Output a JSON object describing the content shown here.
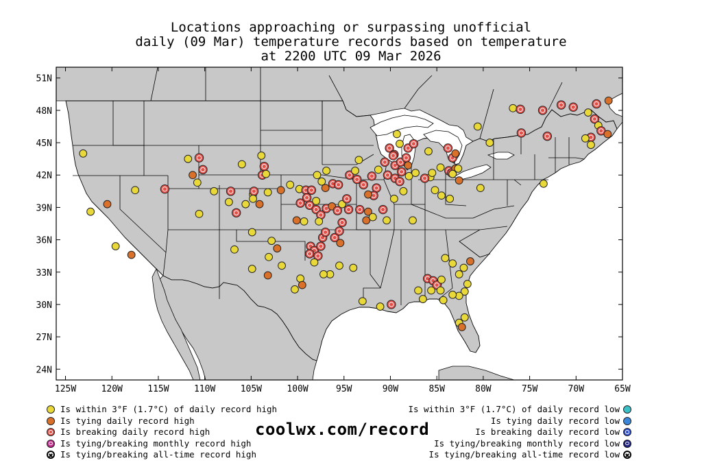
{
  "title_lines": [
    "Locations approaching or surpassing unofficial",
    "daily (09 Mar) temperature records based on temperature",
    "at 2200 UTC 09 Mar 2026"
  ],
  "map": {
    "lon_range": [
      -126,
      -65
    ],
    "lat_range": [
      23,
      52
    ],
    "lon_ticks": [
      {
        "lon": -125,
        "label": "125W"
      },
      {
        "lon": -120,
        "label": "120W"
      },
      {
        "lon": -115,
        "label": "115W"
      },
      {
        "lon": -110,
        "label": "110W"
      },
      {
        "lon": -105,
        "label": "105W"
      },
      {
        "lon": -100,
        "label": "100W"
      },
      {
        "lon": -95,
        "label": "95W"
      },
      {
        "lon": -90,
        "label": "90W"
      },
      {
        "lon": -85,
        "label": "85W"
      },
      {
        "lon": -80,
        "label": "80W"
      },
      {
        "lon": -75,
        "label": "75W"
      },
      {
        "lon": -70,
        "label": "70W"
      },
      {
        "lon": -65,
        "label": "65W"
      }
    ],
    "lat_ticks": [
      {
        "lat": 51,
        "label": "51N"
      },
      {
        "lat": 48,
        "label": "48N"
      },
      {
        "lat": 45,
        "label": "45N"
      },
      {
        "lat": 42,
        "label": "42N"
      },
      {
        "lat": 39,
        "label": "39N"
      },
      {
        "lat": 36,
        "label": "36N"
      },
      {
        "lat": 33,
        "label": "33N"
      },
      {
        "lat": 30,
        "label": "30N"
      },
      {
        "lat": 27,
        "label": "27N"
      },
      {
        "lat": 24,
        "label": "24N"
      }
    ],
    "land_color": "#c8c8c8",
    "water_color": "#ffffff",
    "colors": {
      "within": "#e8d83a",
      "tying": "#d9712a",
      "breaking": "#e2504a"
    },
    "stations": [
      {
        "lon": -123.1,
        "lat": 44.0,
        "cat": "within"
      },
      {
        "lon": -122.3,
        "lat": 38.6,
        "cat": "within"
      },
      {
        "lon": -120.5,
        "lat": 39.3,
        "cat": "tying"
      },
      {
        "lon": -119.6,
        "lat": 35.4,
        "cat": "within"
      },
      {
        "lon": -117.9,
        "lat": 34.6,
        "cat": "tying"
      },
      {
        "lon": -117.5,
        "lat": 40.6,
        "cat": "within"
      },
      {
        "lon": -114.3,
        "lat": 40.7,
        "cat": "breaking"
      },
      {
        "lon": -111.8,
        "lat": 43.5,
        "cat": "within"
      },
      {
        "lon": -110.6,
        "lat": 43.6,
        "cat": "breaking"
      },
      {
        "lon": -110.2,
        "lat": 42.5,
        "cat": "breaking"
      },
      {
        "lon": -111.3,
        "lat": 42.0,
        "cat": "tying"
      },
      {
        "lon": -110.8,
        "lat": 41.3,
        "cat": "within"
      },
      {
        "lon": -109.0,
        "lat": 40.5,
        "cat": "within"
      },
      {
        "lon": -110.6,
        "lat": 38.4,
        "cat": "within"
      },
      {
        "lon": -106.0,
        "lat": 43.0,
        "cat": "within"
      },
      {
        "lon": -107.2,
        "lat": 40.5,
        "cat": "breaking"
      },
      {
        "lon": -107.4,
        "lat": 39.5,
        "cat": "within"
      },
      {
        "lon": -106.6,
        "lat": 38.5,
        "cat": "breaking"
      },
      {
        "lon": -105.6,
        "lat": 39.3,
        "cat": "within"
      },
      {
        "lon": -104.8,
        "lat": 40.2,
        "cat": "within"
      },
      {
        "lon": -104.7,
        "lat": 40.5,
        "cat": "breaking"
      },
      {
        "lon": -104.8,
        "lat": 39.8,
        "cat": "within"
      },
      {
        "lon": -104.1,
        "lat": 39.3,
        "cat": "tying"
      },
      {
        "lon": -103.9,
        "lat": 43.8,
        "cat": "within"
      },
      {
        "lon": -103.6,
        "lat": 42.8,
        "cat": "breaking"
      },
      {
        "lon": -103.8,
        "lat": 42.0,
        "cat": "breaking"
      },
      {
        "lon": -103.4,
        "lat": 42.1,
        "cat": "within"
      },
      {
        "lon": -103.2,
        "lat": 40.4,
        "cat": "within"
      },
      {
        "lon": -104.9,
        "lat": 36.7,
        "cat": "within"
      },
      {
        "lon": -106.8,
        "lat": 35.1,
        "cat": "within"
      },
      {
        "lon": -103.1,
        "lat": 34.4,
        "cat": "within"
      },
      {
        "lon": -103.2,
        "lat": 32.7,
        "cat": "tying"
      },
      {
        "lon": -104.9,
        "lat": 33.3,
        "cat": "within"
      },
      {
        "lon": -102.8,
        "lat": 35.9,
        "cat": "within"
      },
      {
        "lon": -102.2,
        "lat": 35.2,
        "cat": "tying"
      },
      {
        "lon": -101.8,
        "lat": 40.6,
        "cat": "tying"
      },
      {
        "lon": -100.8,
        "lat": 41.1,
        "cat": "within"
      },
      {
        "lon": -99.8,
        "lat": 40.7,
        "cat": "within"
      },
      {
        "lon": -99.1,
        "lat": 40.6,
        "cat": "breaking"
      },
      {
        "lon": -98.5,
        "lat": 40.6,
        "cat": "breaking"
      },
      {
        "lon": -97.9,
        "lat": 42.0,
        "cat": "within"
      },
      {
        "lon": -97.4,
        "lat": 41.4,
        "cat": "within"
      },
      {
        "lon": -97.0,
        "lat": 40.8,
        "cat": "tying"
      },
      {
        "lon": -96.2,
        "lat": 41.2,
        "cat": "breaking"
      },
      {
        "lon": -95.6,
        "lat": 41.1,
        "cat": "breaking"
      },
      {
        "lon": -96.9,
        "lat": 42.4,
        "cat": "within"
      },
      {
        "lon": -99.0,
        "lat": 39.9,
        "cat": "breaking"
      },
      {
        "lon": -98.0,
        "lat": 39.6,
        "cat": "within"
      },
      {
        "lon": -98.7,
        "lat": 39.2,
        "cat": "breaking"
      },
      {
        "lon": -98.0,
        "lat": 38.8,
        "cat": "breaking"
      },
      {
        "lon": -97.5,
        "lat": 38.3,
        "cat": "breaking"
      },
      {
        "lon": -96.9,
        "lat": 38.9,
        "cat": "breaking"
      },
      {
        "lon": -96.3,
        "lat": 39.1,
        "cat": "tying"
      },
      {
        "lon": -95.7,
        "lat": 38.7,
        "cat": "breaking"
      },
      {
        "lon": -95.2,
        "lat": 39.3,
        "cat": "within"
      },
      {
        "lon": -95.2,
        "lat": 37.6,
        "cat": "breaking"
      },
      {
        "lon": -99.7,
        "lat": 39.4,
        "cat": "breaking"
      },
      {
        "lon": -100.1,
        "lat": 37.8,
        "cat": "tying"
      },
      {
        "lon": -99.3,
        "lat": 37.7,
        "cat": "within"
      },
      {
        "lon": -97.7,
        "lat": 37.7,
        "cat": "within"
      },
      {
        "lon": -97.3,
        "lat": 36.2,
        "cat": "breaking"
      },
      {
        "lon": -97.0,
        "lat": 36.7,
        "cat": "breaking"
      },
      {
        "lon": -96.0,
        "lat": 36.2,
        "cat": "breaking"
      },
      {
        "lon": -95.5,
        "lat": 36.8,
        "cat": "breaking"
      },
      {
        "lon": -95.4,
        "lat": 35.7,
        "cat": "tying"
      },
      {
        "lon": -98.6,
        "lat": 35.4,
        "cat": "breaking"
      },
      {
        "lon": -98.2,
        "lat": 35.0,
        "cat": "breaking"
      },
      {
        "lon": -97.5,
        "lat": 35.4,
        "cat": "breaking"
      },
      {
        "lon": -98.7,
        "lat": 34.7,
        "cat": "breaking"
      },
      {
        "lon": -97.8,
        "lat": 34.5,
        "cat": "breaking"
      },
      {
        "lon": -98.2,
        "lat": 33.9,
        "cat": "within"
      },
      {
        "lon": -96.5,
        "lat": 32.8,
        "cat": "within"
      },
      {
        "lon": -97.2,
        "lat": 32.8,
        "cat": "within"
      },
      {
        "lon": -95.5,
        "lat": 33.6,
        "cat": "within"
      },
      {
        "lon": -94.0,
        "lat": 33.4,
        "cat": "within"
      },
      {
        "lon": -99.7,
        "lat": 32.4,
        "cat": "within"
      },
      {
        "lon": -101.7,
        "lat": 33.6,
        "cat": "within"
      },
      {
        "lon": -100.3,
        "lat": 31.4,
        "cat": "within"
      },
      {
        "lon": -99.5,
        "lat": 31.8,
        "cat": "tying"
      },
      {
        "lon": -94.7,
        "lat": 39.8,
        "cat": "breaking"
      },
      {
        "lon": -94.5,
        "lat": 38.8,
        "cat": "breaking"
      },
      {
        "lon": -93.3,
        "lat": 38.8,
        "cat": "breaking"
      },
      {
        "lon": -92.4,
        "lat": 38.6,
        "cat": "tying"
      },
      {
        "lon": -92.6,
        "lat": 37.8,
        "cat": "tying"
      },
      {
        "lon": -91.5,
        "lat": 40.8,
        "cat": "breaking"
      },
      {
        "lon": -91.8,
        "lat": 40.1,
        "cat": "breaking"
      },
      {
        "lon": -92.4,
        "lat": 40.2,
        "cat": "tying"
      },
      {
        "lon": -93.6,
        "lat": 41.6,
        "cat": "breaking"
      },
      {
        "lon": -92.9,
        "lat": 41.1,
        "cat": "breaking"
      },
      {
        "lon": -92.0,
        "lat": 41.9,
        "cat": "breaking"
      },
      {
        "lon": -94.4,
        "lat": 42.0,
        "cat": "breaking"
      },
      {
        "lon": -93.8,
        "lat": 42.4,
        "cat": "within"
      },
      {
        "lon": -93.4,
        "lat": 43.4,
        "cat": "within"
      },
      {
        "lon": -91.3,
        "lat": 42.5,
        "cat": "within"
      },
      {
        "lon": -90.6,
        "lat": 43.2,
        "cat": "breaking"
      },
      {
        "lon": -90.1,
        "lat": 44.5,
        "cat": "breaking"
      },
      {
        "lon": -89.6,
        "lat": 43.9,
        "cat": "breaking"
      },
      {
        "lon": -89.5,
        "lat": 42.9,
        "cat": "breaking"
      },
      {
        "lon": -88.9,
        "lat": 43.2,
        "cat": "breaking"
      },
      {
        "lon": -88.3,
        "lat": 43.6,
        "cat": "breaking"
      },
      {
        "lon": -88.1,
        "lat": 44.5,
        "cat": "breaking"
      },
      {
        "lon": -87.5,
        "lat": 44.9,
        "cat": "breaking"
      },
      {
        "lon": -89.3,
        "lat": 45.8,
        "cat": "within"
      },
      {
        "lon": -89.0,
        "lat": 44.9,
        "cat": "within"
      },
      {
        "lon": -90.3,
        "lat": 42.0,
        "cat": "breaking"
      },
      {
        "lon": -89.5,
        "lat": 41.7,
        "cat": "breaking"
      },
      {
        "lon": -88.8,
        "lat": 42.3,
        "cat": "breaking"
      },
      {
        "lon": -88.0,
        "lat": 41.9,
        "cat": "within"
      },
      {
        "lon": -89.0,
        "lat": 41.4,
        "cat": "breaking"
      },
      {
        "lon": -88.1,
        "lat": 42.9,
        "cat": "tying"
      },
      {
        "lon": -87.3,
        "lat": 42.2,
        "cat": "within"
      },
      {
        "lon": -88.6,
        "lat": 40.5,
        "cat": "within"
      },
      {
        "lon": -89.6,
        "lat": 39.8,
        "cat": "within"
      },
      {
        "lon": -90.8,
        "lat": 38.8,
        "cat": "breaking"
      },
      {
        "lon": -91.9,
        "lat": 38.1,
        "cat": "within"
      },
      {
        "lon": -90.4,
        "lat": 37.8,
        "cat": "within"
      },
      {
        "lon": -87.6,
        "lat": 37.8,
        "cat": "within"
      },
      {
        "lon": -85.7,
        "lat": 41.8,
        "cat": "within"
      },
      {
        "lon": -85.5,
        "lat": 42.2,
        "cat": "within"
      },
      {
        "lon": -84.6,
        "lat": 42.7,
        "cat": "within"
      },
      {
        "lon": -83.7,
        "lat": 42.4,
        "cat": "breaking"
      },
      {
        "lon": -83.4,
        "lat": 42.2,
        "cat": "breaking"
      },
      {
        "lon": -83.0,
        "lat": 42.6,
        "cat": "tying"
      },
      {
        "lon": -83.3,
        "lat": 43.6,
        "cat": "breaking"
      },
      {
        "lon": -83.0,
        "lat": 44.0,
        "cat": "tying"
      },
      {
        "lon": -83.8,
        "lat": 44.5,
        "cat": "breaking"
      },
      {
        "lon": -85.9,
        "lat": 44.2,
        "cat": "within"
      },
      {
        "lon": -86.3,
        "lat": 41.7,
        "cat": "breaking"
      },
      {
        "lon": -85.2,
        "lat": 40.6,
        "cat": "within"
      },
      {
        "lon": -84.5,
        "lat": 40.1,
        "cat": "within"
      },
      {
        "lon": -83.3,
        "lat": 42.1,
        "cat": "within"
      },
      {
        "lon": -82.7,
        "lat": 42.6,
        "cat": "within"
      },
      {
        "lon": -82.6,
        "lat": 41.5,
        "cat": "tying"
      },
      {
        "lon": -83.6,
        "lat": 39.8,
        "cat": "within"
      },
      {
        "lon": -80.3,
        "lat": 40.8,
        "cat": "within"
      },
      {
        "lon": -80.6,
        "lat": 46.5,
        "cat": "within"
      },
      {
        "lon": -79.3,
        "lat": 45.0,
        "cat": "within"
      },
      {
        "lon": -76.8,
        "lat": 48.2,
        "cat": "within"
      },
      {
        "lon": -76.0,
        "lat": 48.1,
        "cat": "breaking"
      },
      {
        "lon": -75.9,
        "lat": 45.9,
        "cat": "breaking"
      },
      {
        "lon": -73.6,
        "lat": 48.0,
        "cat": "breaking"
      },
      {
        "lon": -73.1,
        "lat": 45.6,
        "cat": "breaking"
      },
      {
        "lon": -71.6,
        "lat": 48.5,
        "cat": "breaking"
      },
      {
        "lon": -70.3,
        "lat": 48.3,
        "cat": "breaking"
      },
      {
        "lon": -68.7,
        "lat": 47.8,
        "cat": "within"
      },
      {
        "lon": -67.8,
        "lat": 48.6,
        "cat": "breaking"
      },
      {
        "lon": -66.5,
        "lat": 48.9,
        "cat": "tying"
      },
      {
        "lon": -68.0,
        "lat": 47.2,
        "cat": "breaking"
      },
      {
        "lon": -67.6,
        "lat": 46.6,
        "cat": "within"
      },
      {
        "lon": -67.3,
        "lat": 46.1,
        "cat": "breaking"
      },
      {
        "lon": -68.4,
        "lat": 45.5,
        "cat": "breaking"
      },
      {
        "lon": -69.0,
        "lat": 45.4,
        "cat": "within"
      },
      {
        "lon": -66.6,
        "lat": 45.8,
        "cat": "tying"
      },
      {
        "lon": -68.4,
        "lat": 44.8,
        "cat": "within"
      },
      {
        "lon": -73.5,
        "lat": 41.2,
        "cat": "within"
      },
      {
        "lon": -89.7,
        "lat": 43.8,
        "cat": "breaking"
      },
      {
        "lon": -84.9,
        "lat": 31.9,
        "cat": "within"
      },
      {
        "lon": -86.0,
        "lat": 32.4,
        "cat": "breaking"
      },
      {
        "lon": -85.4,
        "lat": 32.2,
        "cat": "breaking"
      },
      {
        "lon": -85.0,
        "lat": 31.8,
        "cat": "breaking"
      },
      {
        "lon": -85.6,
        "lat": 31.3,
        "cat": "within"
      },
      {
        "lon": -84.6,
        "lat": 31.3,
        "cat": "within"
      },
      {
        "lon": -84.5,
        "lat": 32.3,
        "cat": "within"
      },
      {
        "lon": -82.6,
        "lat": 32.8,
        "cat": "within"
      },
      {
        "lon": -82.1,
        "lat": 33.4,
        "cat": "within"
      },
      {
        "lon": -81.4,
        "lat": 34.0,
        "cat": "tying"
      },
      {
        "lon": -83.3,
        "lat": 33.8,
        "cat": "within"
      },
      {
        "lon": -84.1,
        "lat": 34.3,
        "cat": "within"
      },
      {
        "lon": -81.7,
        "lat": 31.9,
        "cat": "within"
      },
      {
        "lon": -82.0,
        "lat": 31.2,
        "cat": "within"
      },
      {
        "lon": -82.6,
        "lat": 30.8,
        "cat": "within"
      },
      {
        "lon": -83.3,
        "lat": 30.9,
        "cat": "within"
      },
      {
        "lon": -84.3,
        "lat": 30.4,
        "cat": "within"
      },
      {
        "lon": -86.5,
        "lat": 30.5,
        "cat": "within"
      },
      {
        "lon": -87.0,
        "lat": 31.3,
        "cat": "within"
      },
      {
        "lon": -82.6,
        "lat": 28.3,
        "cat": "within"
      },
      {
        "lon": -82.0,
        "lat": 28.8,
        "cat": "within"
      },
      {
        "lon": -82.3,
        "lat": 27.9,
        "cat": "tying"
      },
      {
        "lon": -89.9,
        "lat": 30.0,
        "cat": "breaking"
      },
      {
        "lon": -91.1,
        "lat": 29.8,
        "cat": "within"
      },
      {
        "lon": -93.0,
        "lat": 30.3,
        "cat": "within"
      }
    ]
  },
  "legend_left": [
    {
      "label": "Is within 3°F (1.7°C) of daily record high",
      "color": "#e8d83a",
      "style": "plain"
    },
    {
      "label": "Is tying daily record high",
      "color": "#d9712a",
      "style": "plain"
    },
    {
      "label": "Is breaking daily record high",
      "color": "#e2504a",
      "style": "inner"
    },
    {
      "label": "Is tying/breaking monthly record high",
      "color": "#c0288c",
      "style": "inner"
    },
    {
      "label": "Is tying/breaking all-time record high",
      "color": "#ffffff",
      "style": "xmark"
    }
  ],
  "legend_right": [
    {
      "label": "Is within 3°F (1.7°C) of daily record low",
      "color": "#3cc0c8",
      "style": "plain"
    },
    {
      "label": "Is tying daily record low",
      "color": "#3a86d8",
      "style": "plain"
    },
    {
      "label": "Is breaking daily record low",
      "color": "#2a4cd0",
      "style": "inner"
    },
    {
      "label": "Is tying/breaking monthly record low",
      "color": "#1a1e80",
      "style": "inner"
    },
    {
      "label": "Is tying/breaking all-time record low",
      "color": "#ffffff",
      "style": "xmark"
    }
  ],
  "site_label": "coolwx.com/record"
}
